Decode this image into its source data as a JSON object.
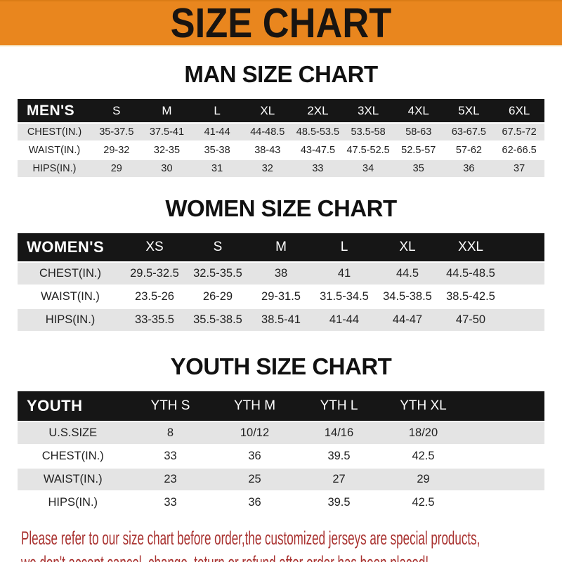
{
  "banner": {
    "title": "SIZE CHART"
  },
  "colors": {
    "banner_orange": "#e9861e",
    "header_black": "#161616",
    "row_gray": "#e4e4e4",
    "note_red": "#a93230"
  },
  "sections": [
    {
      "title": "MAN SIZE CHART",
      "corner_label": "MEN'S",
      "columns": [
        "S",
        "M",
        "L",
        "XL",
        "2XL",
        "3XL",
        "4XL",
        "5XL",
        "6XL"
      ],
      "rows": [
        {
          "label": "CHEST(IN.)",
          "values": [
            "35-37.5",
            "37.5-41",
            "41-44",
            "44-48.5",
            "48.5-53.5",
            "53.5-58",
            "58-63",
            "63-67.5",
            "67.5-72"
          ]
        },
        {
          "label": "WAIST(IN.)",
          "values": [
            "29-32",
            "32-35",
            "35-38",
            "38-43",
            "43-47.5",
            "47.5-52.5",
            "52.5-57",
            "57-62",
            "62-66.5"
          ]
        },
        {
          "label": "HIPS(IN.)",
          "values": [
            "29",
            "30",
            "31",
            "32",
            "33",
            "34",
            "35",
            "36",
            "37"
          ]
        }
      ]
    },
    {
      "title": "WOMEN SIZE CHART",
      "corner_label": "WOMEN'S",
      "columns": [
        "XS",
        "S",
        "M",
        "L",
        "XL",
        "XXL"
      ],
      "rows": [
        {
          "label": "CHEST(IN.)",
          "values": [
            "29.5-32.5",
            "32.5-35.5",
            "38",
            "41",
            "44.5",
            "44.5-48.5"
          ]
        },
        {
          "label": "WAIST(IN.)",
          "values": [
            "23.5-26",
            "26-29",
            "29-31.5",
            "31.5-34.5",
            "34.5-38.5",
            "38.5-42.5"
          ]
        },
        {
          "label": "HIPS(IN.)",
          "values": [
            "33-35.5",
            "35.5-38.5",
            "38.5-41",
            "41-44",
            "44-47",
            "47-50"
          ]
        }
      ]
    },
    {
      "title": "YOUTH SIZE CHART",
      "corner_label": "YOUTH",
      "columns": [
        "YTH S",
        "YTH M",
        "YTH L",
        "YTH XL"
      ],
      "rows": [
        {
          "label": "U.S.SIZE",
          "values": [
            "8",
            "10/12",
            "14/16",
            "18/20"
          ]
        },
        {
          "label": "CHEST(IN.)",
          "values": [
            "33",
            "36",
            "39.5",
            "42.5"
          ]
        },
        {
          "label": "WAIST(IN.)",
          "values": [
            "23",
            "25",
            "27",
            "29"
          ]
        },
        {
          "label": "HIPS(IN.)",
          "values": [
            "33",
            "36",
            "39.5",
            "42.5"
          ]
        }
      ]
    }
  ],
  "note": {
    "line1": "Please refer to our size chart before order,the customized jerseys are special products,",
    "line2": "we don't accept cancel, change, teturn or refund after order has been placed!"
  }
}
